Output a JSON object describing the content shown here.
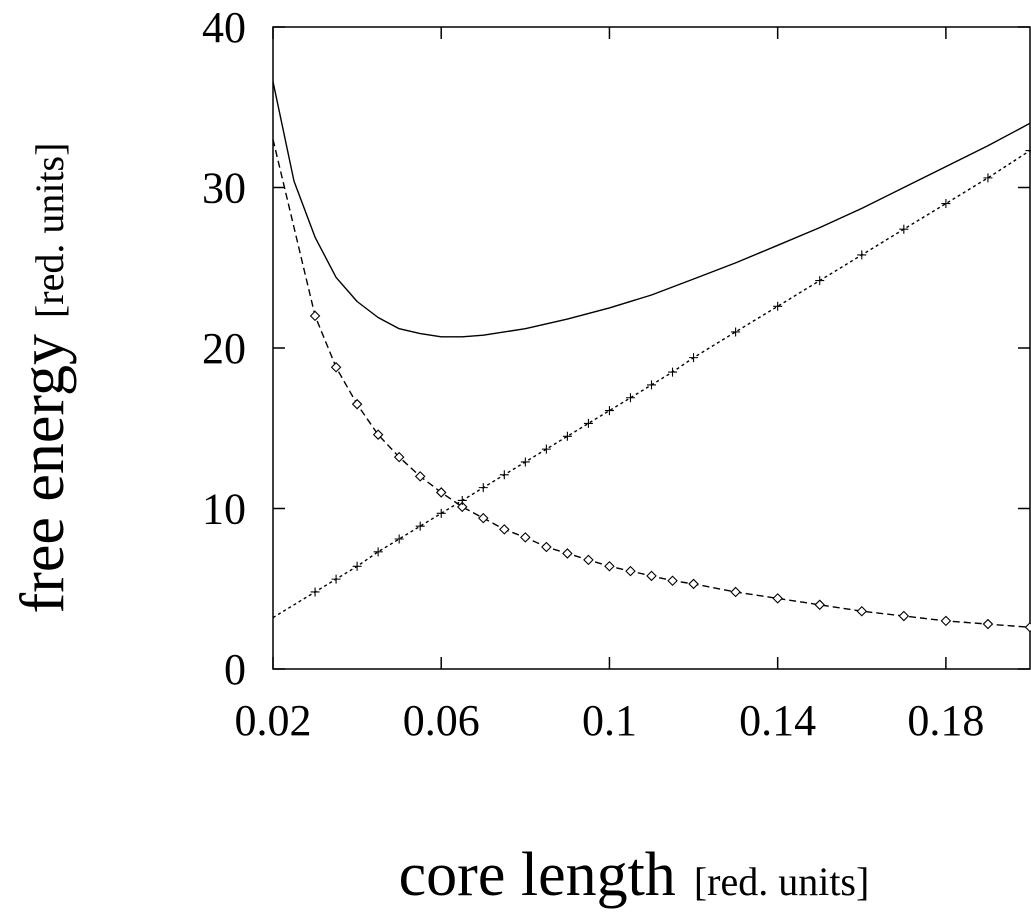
{
  "chart_data": {
    "type": "line",
    "xlabel": "core length",
    "xlabel_unit": "[red. units]",
    "ylabel": "free energy",
    "ylabel_unit": "[red. units]",
    "xlim": [
      0.02,
      0.2
    ],
    "ylim": [
      0,
      40
    ],
    "xticks": [
      "0.02",
      "0.06",
      "0.1",
      "0.14",
      "0.18"
    ],
    "yticks": [
      "0",
      "10",
      "20",
      "30",
      "40"
    ],
    "grid": false,
    "series": [
      {
        "style": "solid",
        "marker": "none",
        "x": [
          0.02,
          0.025,
          0.03,
          0.035,
          0.04,
          0.045,
          0.05,
          0.055,
          0.06,
          0.065,
          0.07,
          0.08,
          0.09,
          0.1,
          0.11,
          0.12,
          0.13,
          0.14,
          0.15,
          0.16,
          0.17,
          0.18,
          0.19,
          0.2
        ],
        "y": [
          36.6,
          30.4,
          26.9,
          24.4,
          22.9,
          21.9,
          21.2,
          20.9,
          20.7,
          20.7,
          20.8,
          21.2,
          21.8,
          22.5,
          23.3,
          24.3,
          25.3,
          26.4,
          27.5,
          28.7,
          30.0,
          31.3,
          32.6,
          34.0
        ]
      },
      {
        "style": "dashed",
        "marker": "diamond",
        "x": [
          0.02,
          0.03,
          0.035,
          0.04,
          0.045,
          0.05,
          0.055,
          0.06,
          0.065,
          0.07,
          0.075,
          0.08,
          0.085,
          0.09,
          0.095,
          0.1,
          0.105,
          0.11,
          0.115,
          0.12,
          0.13,
          0.14,
          0.15,
          0.16,
          0.17,
          0.18,
          0.19,
          0.2
        ],
        "y": [
          33.0,
          22.0,
          18.8,
          16.5,
          14.6,
          13.2,
          12.0,
          11.0,
          10.1,
          9.4,
          8.7,
          8.2,
          7.6,
          7.2,
          6.8,
          6.4,
          6.1,
          5.8,
          5.5,
          5.3,
          4.8,
          4.4,
          4.0,
          3.6,
          3.3,
          3.0,
          2.8,
          2.6
        ]
      },
      {
        "style": "dotted",
        "marker": "plus",
        "x": [
          0.02,
          0.03,
          0.035,
          0.04,
          0.045,
          0.05,
          0.055,
          0.06,
          0.065,
          0.07,
          0.075,
          0.08,
          0.085,
          0.09,
          0.095,
          0.1,
          0.105,
          0.11,
          0.115,
          0.12,
          0.13,
          0.14,
          0.15,
          0.16,
          0.17,
          0.18,
          0.19,
          0.2
        ],
        "y": [
          3.2,
          4.8,
          5.6,
          6.4,
          7.3,
          8.1,
          8.9,
          9.7,
          10.5,
          11.3,
          12.1,
          12.9,
          13.7,
          14.5,
          15.3,
          16.1,
          16.9,
          17.7,
          18.5,
          19.4,
          21.0,
          22.6,
          24.2,
          25.8,
          27.4,
          29.0,
          30.6,
          32.3
        ]
      }
    ]
  }
}
